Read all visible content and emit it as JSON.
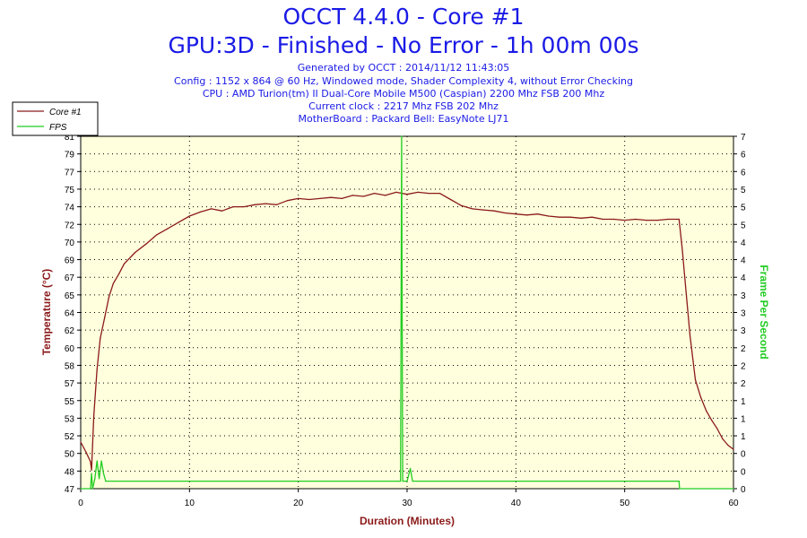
{
  "header": {
    "title_line1": "OCCT 4.4.0 - Core #1",
    "title_line2": "GPU:3D - Finished - No Error - 1h 00m 00s",
    "info": [
      "Generated by OCCT : 2014/11/12 11:43:05",
      "Config : 1152 x 864 @ 60 Hz, Windowed mode, Shader Complexity 4, without Error Checking",
      "CPU : AMD Turion(tm) II Dual-Core Mobile M500 (Caspian) 2200 Mhz FSB 200 Mhz",
      "Current clock : 2217 Mhz FSB 202 Mhz",
      "MotherBoard : Packard Bell: EasyNote LJ71"
    ]
  },
  "colors": {
    "title": "#1a1ae6",
    "temperature": "#8b1a1a",
    "fps": "#22cc22",
    "plot_bg": "#ffffdd",
    "grid": "#000000"
  },
  "chart_data": {
    "type": "line",
    "xlabel": "Duration (Minutes)",
    "ylabel": "Temperature (°C)",
    "y2label": "Frame Per Second",
    "xlim": [
      0,
      60
    ],
    "ylim": [
      47,
      81
    ],
    "y2lim": [
      0,
      7
    ],
    "grid": true,
    "legend_position": "top-left",
    "x_ticks": [
      0,
      10,
      20,
      30,
      40,
      50,
      60
    ],
    "y_ticks": [
      {
        "v": 47,
        "label": "47"
      },
      {
        "v": 48.7,
        "label": "48"
      },
      {
        "v": 50.4,
        "label": "50"
      },
      {
        "v": 52.1,
        "label": "52"
      },
      {
        "v": 53.8,
        "label": "53"
      },
      {
        "v": 55.5,
        "label": "55"
      },
      {
        "v": 57.2,
        "label": "57"
      },
      {
        "v": 58.9,
        "label": "58"
      },
      {
        "v": 60.6,
        "label": "60"
      },
      {
        "v": 62.3,
        "label": "62"
      },
      {
        "v": 64.0,
        "label": "64"
      },
      {
        "v": 65.7,
        "label": "65"
      },
      {
        "v": 67.4,
        "label": "67"
      },
      {
        "v": 69.1,
        "label": "69"
      },
      {
        "v": 70.8,
        "label": "70"
      },
      {
        "v": 72.5,
        "label": "72"
      },
      {
        "v": 74.2,
        "label": "74"
      },
      {
        "v": 75.9,
        "label": "75"
      },
      {
        "v": 77.6,
        "label": "77"
      },
      {
        "v": 79.3,
        "label": "79"
      },
      {
        "v": 81.0,
        "label": "81"
      }
    ],
    "y2_ticks": [
      {
        "v": 0,
        "label": "0"
      },
      {
        "v": 0.35,
        "label": "0"
      },
      {
        "v": 0.7,
        "label": "0"
      },
      {
        "v": 1.05,
        "label": "1"
      },
      {
        "v": 1.4,
        "label": "1"
      },
      {
        "v": 1.75,
        "label": "1"
      },
      {
        "v": 2.1,
        "label": "2"
      },
      {
        "v": 2.45,
        "label": "2"
      },
      {
        "v": 2.8,
        "label": "2"
      },
      {
        "v": 3.15,
        "label": "3"
      },
      {
        "v": 3.5,
        "label": "3"
      },
      {
        "v": 3.85,
        "label": "3"
      },
      {
        "v": 4.2,
        "label": "4"
      },
      {
        "v": 4.55,
        "label": "4"
      },
      {
        "v": 4.9,
        "label": "4"
      },
      {
        "v": 5.25,
        "label": "5"
      },
      {
        "v": 5.6,
        "label": "5"
      },
      {
        "v": 5.95,
        "label": "5"
      },
      {
        "v": 6.3,
        "label": "6"
      },
      {
        "v": 6.65,
        "label": "6"
      },
      {
        "v": 7.0,
        "label": "7"
      }
    ],
    "series": [
      {
        "name": "Core #1",
        "axis": "left",
        "points": [
          [
            0,
            51.5
          ],
          [
            0.5,
            50.5
          ],
          [
            0.9,
            49.6
          ],
          [
            1.0,
            48.8
          ],
          [
            1.2,
            54.0
          ],
          [
            1.5,
            58.5
          ],
          [
            1.8,
            61.5
          ],
          [
            2.2,
            63.5
          ],
          [
            2.6,
            65.5
          ],
          [
            3.0,
            66.8
          ],
          [
            3.5,
            67.7
          ],
          [
            4,
            68.7
          ],
          [
            5,
            69.8
          ],
          [
            6,
            70.6
          ],
          [
            7,
            71.5
          ],
          [
            8,
            72.1
          ],
          [
            9,
            72.7
          ],
          [
            10,
            73.3
          ],
          [
            11,
            73.7
          ],
          [
            12,
            74.0
          ],
          [
            13,
            73.8
          ],
          [
            14,
            74.2
          ],
          [
            15,
            74.2
          ],
          [
            16,
            74.4
          ],
          [
            17,
            74.5
          ],
          [
            18,
            74.4
          ],
          [
            19,
            74.8
          ],
          [
            20,
            75.0
          ],
          [
            21,
            74.9
          ],
          [
            22,
            75.0
          ],
          [
            23,
            75.1
          ],
          [
            24,
            75.0
          ],
          [
            25,
            75.3
          ],
          [
            26,
            75.2
          ],
          [
            27,
            75.5
          ],
          [
            28,
            75.3
          ],
          [
            29,
            75.6
          ],
          [
            30,
            75.4
          ],
          [
            31,
            75.6
          ],
          [
            32,
            75.5
          ],
          [
            33,
            75.5
          ],
          [
            34,
            74.9
          ],
          [
            35,
            74.3
          ],
          [
            36,
            74.0
          ],
          [
            37,
            73.9
          ],
          [
            38,
            73.8
          ],
          [
            39,
            73.6
          ],
          [
            40,
            73.5
          ],
          [
            41,
            73.4
          ],
          [
            42,
            73.5
          ],
          [
            43,
            73.3
          ],
          [
            44,
            73.2
          ],
          [
            45,
            73.2
          ],
          [
            46,
            73.1
          ],
          [
            47,
            73.2
          ],
          [
            48,
            73.0
          ],
          [
            49,
            73.0
          ],
          [
            50,
            72.9
          ],
          [
            51,
            73.0
          ],
          [
            52,
            72.9
          ],
          [
            53,
            72.9
          ],
          [
            54,
            73.0
          ],
          [
            55,
            73.0
          ],
          [
            55.3,
            70.0
          ],
          [
            55.6,
            66.5
          ],
          [
            56,
            61.8
          ],
          [
            56.5,
            57.5
          ],
          [
            57,
            55.8
          ],
          [
            57.5,
            54.5
          ],
          [
            58,
            53.6
          ],
          [
            58.5,
            52.8
          ],
          [
            59,
            51.8
          ],
          [
            59.5,
            51.2
          ],
          [
            60,
            50.8
          ]
        ]
      },
      {
        "name": "FPS",
        "axis": "right",
        "points": [
          [
            0,
            0
          ],
          [
            0.9,
            0
          ],
          [
            1.0,
            0.3
          ],
          [
            1.1,
            0
          ],
          [
            1.3,
            0.2
          ],
          [
            1.5,
            0.55
          ],
          [
            1.7,
            0.2
          ],
          [
            1.9,
            0.55
          ],
          [
            2.1,
            0.3
          ],
          [
            2.3,
            0.15
          ],
          [
            3,
            0.15
          ],
          [
            10,
            0.15
          ],
          [
            20,
            0.15
          ],
          [
            29,
            0.15
          ],
          [
            29.4,
            0.15
          ],
          [
            29.5,
            7.0
          ],
          [
            29.6,
            0.15
          ],
          [
            30,
            0.15
          ],
          [
            30.3,
            0.4
          ],
          [
            30.5,
            0.15
          ],
          [
            40,
            0.15
          ],
          [
            50,
            0.15
          ],
          [
            55,
            0.15
          ],
          [
            55.05,
            0
          ],
          [
            60,
            0
          ]
        ]
      }
    ]
  }
}
